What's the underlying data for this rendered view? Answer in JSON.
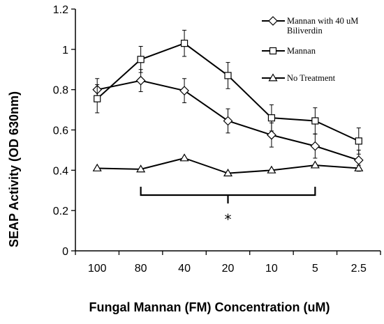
{
  "chart_data": {
    "type": "line",
    "xlabel": "Fungal Mannan (FM) Concentration (uM)",
    "ylabel": "SEAP Activity (OD 630nm)",
    "categories": [
      "100",
      "80",
      "40",
      "20",
      "10",
      "5",
      "2.5"
    ],
    "ylim": [
      0,
      1.2
    ],
    "yticks": [
      "0",
      "0.2",
      "0.4",
      "0.6",
      "0.8",
      "1",
      "1.2"
    ],
    "grid": false,
    "legend_position": "top-right",
    "series": [
      {
        "name": "Mannan with 40 uM Biliverdin",
        "marker": "diamond",
        "values": [
          0.8,
          0.845,
          0.795,
          0.645,
          0.575,
          0.52,
          0.45
        ],
        "errors": [
          0.055,
          0.055,
          0.06,
          0.06,
          0.06,
          0.06,
          0.05
        ]
      },
      {
        "name": "Mannan",
        "marker": "square",
        "values": [
          0.755,
          0.95,
          1.03,
          0.87,
          0.66,
          0.645,
          0.545
        ],
        "errors": [
          0.07,
          0.065,
          0.065,
          0.065,
          0.065,
          0.065,
          0.065
        ]
      },
      {
        "name": "No Treatment",
        "marker": "triangle",
        "values": [
          0.41,
          0.405,
          0.46,
          0.385,
          0.4,
          0.425,
          0.41
        ],
        "errors": [
          0,
          0,
          0,
          0,
          0,
          0,
          0.015
        ]
      }
    ],
    "legend_lines": [
      [
        "Mannan with 40 uM",
        "Biliverdin"
      ],
      [
        "Mannan"
      ],
      [
        "No Treatment"
      ]
    ],
    "annotations": [
      {
        "text": "*",
        "bracket_from": "80",
        "bracket_to": "5"
      }
    ]
  }
}
